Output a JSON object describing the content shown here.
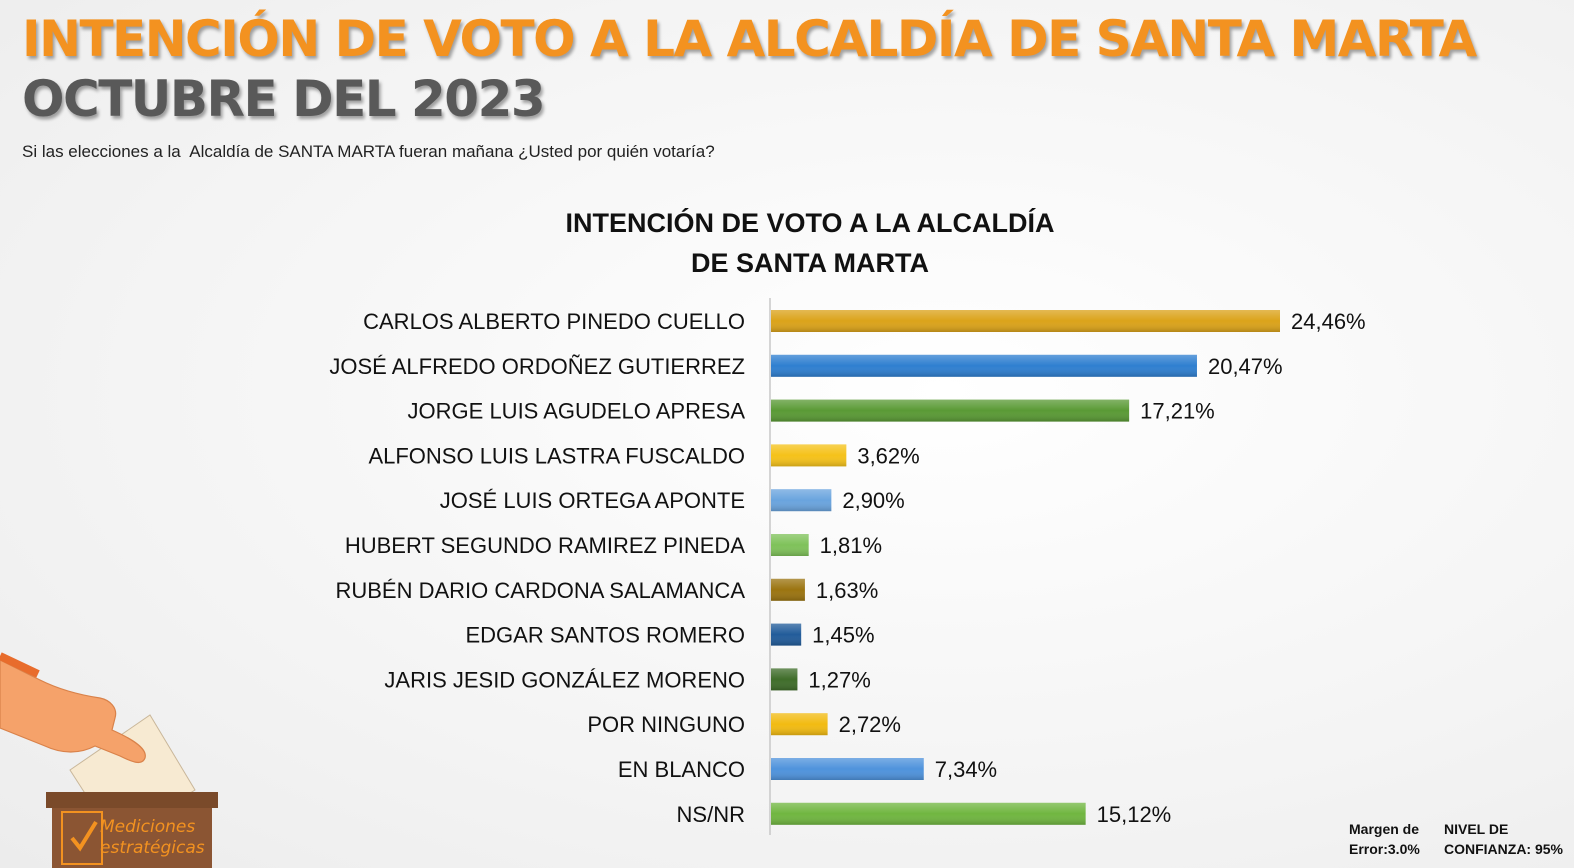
{
  "header": {
    "title": "INTENCIÓN DE VOTO A LA ALCALDÍA DE SANTA MARTA",
    "subtitle": "OCTUBRE DEL 2023",
    "question": "Si las elecciones a la  Alcaldía de SANTA MARTA fueran mañana ¿Usted por quién votaría?"
  },
  "chart_data": {
    "type": "bar",
    "orientation": "horizontal",
    "title_line1": "INTENCIÓN DE VOTO A LA ALCALDÍA",
    "title_line2": "DE SANTA MARTA",
    "categories": [
      "CARLOS ALBERTO PINEDO CUELLO",
      "JOSÉ ALFREDO ORDOÑEZ GUTIERREZ",
      "JORGE LUIS AGUDELO APRESA",
      "ALFONSO LUIS LASTRA FUSCALDO",
      "JOSÉ LUIS ORTEGA APONTE",
      "HUBERT SEGUNDO RAMIREZ PINEDA",
      "RUBÉN DARIO CARDONA SALAMANCA",
      "EDGAR SANTOS ROMERO",
      "JARIS JESID GONZÁLEZ MORENO",
      "POR NINGUNO",
      "EN BLANCO",
      "NS/NR"
    ],
    "values": [
      24.46,
      20.47,
      17.21,
      3.62,
      2.9,
      1.81,
      1.63,
      1.45,
      1.27,
      2.72,
      7.34,
      15.12
    ],
    "labels": [
      "24,46%",
      "20,47%",
      "17,21%",
      "3,62%",
      "2,90%",
      "1,81%",
      "1,63%",
      "1,45%",
      "1,27%",
      "2,72%",
      "7,34%",
      "15,12%"
    ],
    "colors": [
      "#dba31a",
      "#2f7fd0",
      "#5a9a35",
      "#f5c21a",
      "#6aa4de",
      "#7fc25a",
      "#9b7410",
      "#225c9a",
      "#3f6d2a",
      "#f2bb12",
      "#4f93dc",
      "#70b640"
    ],
    "xlim": [
      0,
      24.46
    ],
    "grid": false,
    "legend": "none"
  },
  "footer": {
    "margin_line1": "Margen de",
    "margin_line2": "Error:3.0%",
    "confidence_line1": "NIVEL DE",
    "confidence_line2": "CONFIANZA: 95%"
  },
  "logo": {
    "line1": "Mediciones",
    "line2": "estratégicas"
  }
}
